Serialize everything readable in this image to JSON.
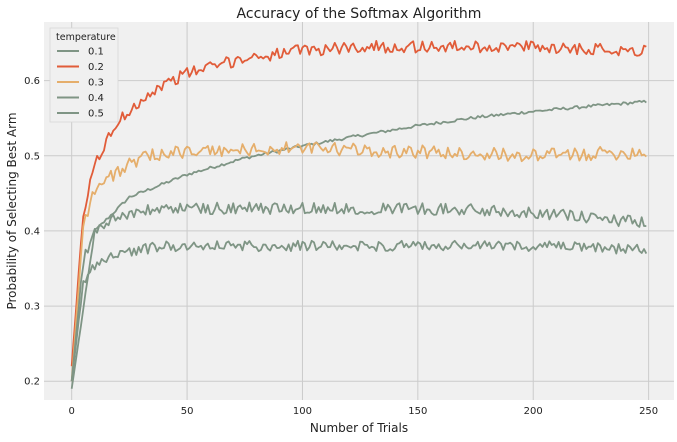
{
  "chart_data": {
    "type": "line",
    "title": "Accuracy of the Softmax Algorithm",
    "xlabel": "Number of Trials",
    "ylabel": "Probability of Selecting Best Arm",
    "xlim": [
      -12,
      261
    ],
    "ylim": [
      0.175,
      0.678
    ],
    "xticks": [
      0,
      50,
      100,
      150,
      200,
      250
    ],
    "yticks": [
      0.2,
      0.3,
      0.4,
      0.5,
      0.6
    ],
    "grid": true,
    "legend_title": "temperature",
    "legend_position": "top-left",
    "series": [
      {
        "name": "0.1",
        "color": "#7f9585",
        "start": 0.19,
        "plateau": 0.575,
        "tau": 55,
        "noise": 0.002,
        "anchors": [
          [
            0,
            0.19
          ],
          [
            10,
            0.4
          ],
          [
            25,
            0.445
          ],
          [
            50,
            0.475
          ],
          [
            75,
            0.497
          ],
          [
            100,
            0.513
          ],
          [
            125,
            0.527
          ],
          [
            150,
            0.54
          ],
          [
            175,
            0.551
          ],
          [
            200,
            0.559
          ],
          [
            225,
            0.566
          ],
          [
            249,
            0.572
          ]
        ]
      },
      {
        "name": "0.2",
        "color": "#e15c39",
        "start": 0.22,
        "plateau": 0.645,
        "tau": 18,
        "noise": 0.008,
        "anchors": [
          [
            0,
            0.22
          ],
          [
            5,
            0.42
          ],
          [
            10,
            0.49
          ],
          [
            20,
            0.545
          ],
          [
            30,
            0.575
          ],
          [
            40,
            0.595
          ],
          [
            50,
            0.61
          ],
          [
            75,
            0.63
          ],
          [
            100,
            0.64
          ],
          [
            125,
            0.645
          ],
          [
            150,
            0.645
          ],
          [
            200,
            0.645
          ],
          [
            249,
            0.64
          ]
        ]
      },
      {
        "name": "0.3",
        "color": "#e5ae6b",
        "start": 0.2,
        "plateau": 0.505,
        "tau": 9,
        "noise": 0.009,
        "anchors": [
          [
            0,
            0.2
          ],
          [
            5,
            0.41
          ],
          [
            10,
            0.455
          ],
          [
            20,
            0.48
          ],
          [
            30,
            0.495
          ],
          [
            40,
            0.505
          ],
          [
            50,
            0.505
          ],
          [
            100,
            0.51
          ],
          [
            150,
            0.505
          ],
          [
            200,
            0.5
          ],
          [
            249,
            0.505
          ]
        ]
      },
      {
        "name": "0.4",
        "color": "#7f9585",
        "start": 0.2,
        "plateau": 0.43,
        "tau": 6,
        "noise": 0.008,
        "anchors": [
          [
            0,
            0.2
          ],
          [
            5,
            0.36
          ],
          [
            10,
            0.4
          ],
          [
            20,
            0.42
          ],
          [
            40,
            0.43
          ],
          [
            100,
            0.43
          ],
          [
            150,
            0.43
          ],
          [
            200,
            0.425
          ],
          [
            249,
            0.41
          ]
        ]
      },
      {
        "name": "0.5",
        "color": "#7f9585",
        "start": 0.2,
        "plateau": 0.38,
        "tau": 5,
        "noise": 0.007,
        "anchors": [
          [
            0,
            0.2
          ],
          [
            5,
            0.33
          ],
          [
            10,
            0.355
          ],
          [
            20,
            0.37
          ],
          [
            40,
            0.38
          ],
          [
            100,
            0.38
          ],
          [
            150,
            0.38
          ],
          [
            200,
            0.38
          ],
          [
            249,
            0.375
          ]
        ]
      }
    ]
  }
}
